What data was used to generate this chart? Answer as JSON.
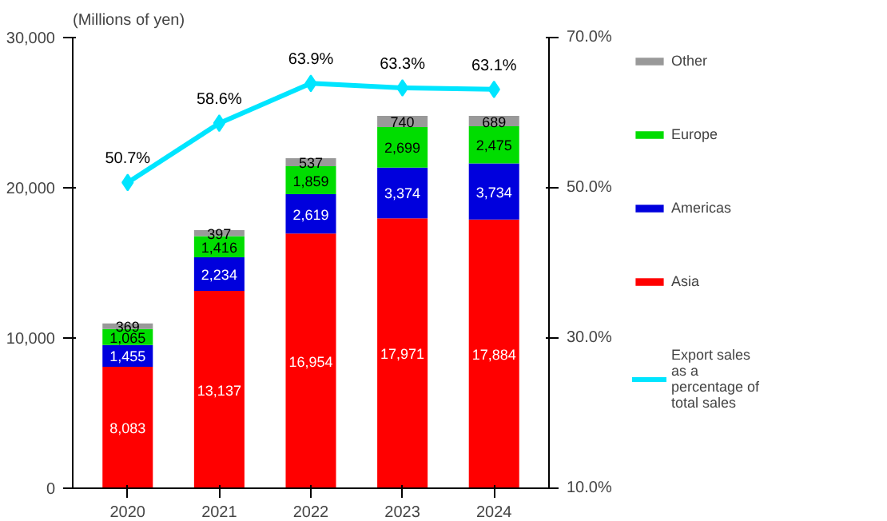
{
  "chart_data": {
    "type": "bar",
    "ylabel": "(Millions of yen)",
    "categories": [
      "2020",
      "2021",
      "2022",
      "2023",
      "2024"
    ],
    "stacked": true,
    "legend": "right",
    "grid": false,
    "ylim": [
      0,
      30000
    ],
    "yticks": [
      0,
      {
        "value": 10000,
        "label": "10,000"
      },
      {
        "value": 20000,
        "label": "20,000"
      },
      {
        "value": 30000,
        "label": "30,000"
      }
    ],
    "y2lim": [
      10,
      70
    ],
    "y2ticks": [
      {
        "value": 10,
        "label": "10.0%"
      },
      {
        "value": 30,
        "label": "30.0%"
      },
      {
        "value": 50,
        "label": "50.0%"
      },
      {
        "value": 70,
        "label": "70.0%"
      }
    ],
    "series": [
      {
        "name": "Asia",
        "color": "#ff0000",
        "values": [
          8083,
          13137,
          16954,
          17971,
          17884
        ],
        "value_labels": [
          "8,083",
          "13,137",
          "16,954",
          "17,971",
          "17,884"
        ]
      },
      {
        "name": "Americas",
        "color": "#0000dd",
        "values": [
          1455,
          2234,
          2619,
          3374,
          3734
        ],
        "value_labels": [
          "1,455",
          "2,234",
          "2,619",
          "3,374",
          "3,734"
        ]
      },
      {
        "name": "Europe",
        "color": "#00dd00",
        "values": [
          1065,
          1416,
          1859,
          2699,
          2475
        ],
        "value_labels": [
          "1,065",
          "1,416",
          "1,859",
          "2,699",
          "2,475"
        ]
      },
      {
        "name": "Other",
        "color": "#999999",
        "values": [
          369,
          397,
          537,
          740,
          689
        ],
        "value_labels": [
          "369",
          "397",
          "537",
          "740",
          "689"
        ]
      },
      {
        "name": "Export sales as a percentage of total sales",
        "type": "line",
        "axis": "y2",
        "color": "#00e5ff",
        "marker": "diamond",
        "values": [
          50.7,
          58.6,
          63.9,
          63.3,
          63.1
        ],
        "value_labels": [
          "50.7%",
          "58.6%",
          "63.9%",
          "63.3%",
          "63.1%"
        ]
      }
    ]
  }
}
